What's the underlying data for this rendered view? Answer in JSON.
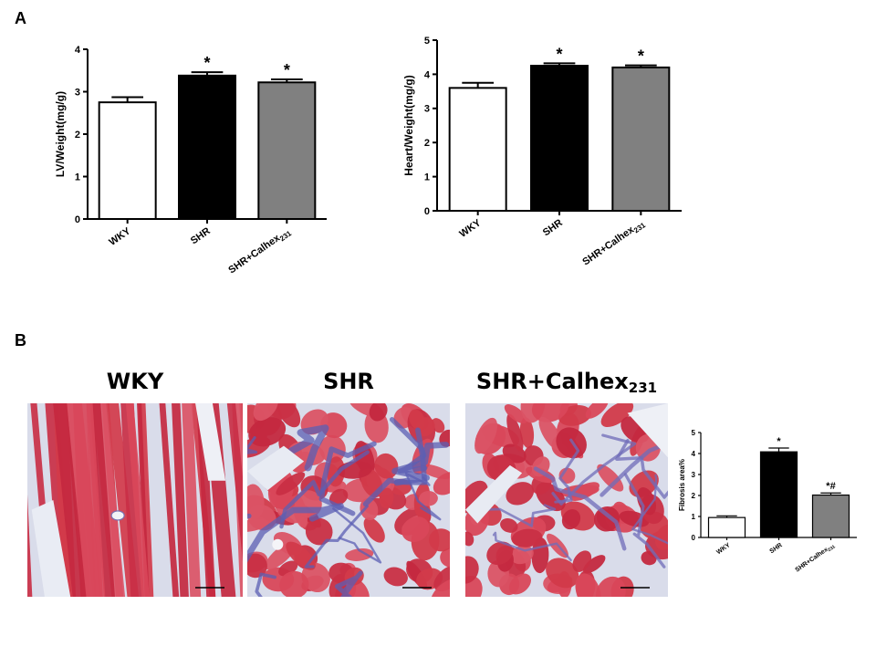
{
  "panels": {
    "a": "A",
    "b": "B"
  },
  "colors": {
    "WKY": "#ffffff",
    "SHR": "#000000",
    "SHR+Calhex231": "#808080"
  },
  "chart_data": [
    {
      "type": "bar",
      "categories": [
        "WKY",
        "SHR",
        "SHR+Calhex231"
      ],
      "values": [
        2.75,
        3.38,
        3.22
      ],
      "errors": [
        0.12,
        0.08,
        0.07
      ],
      "annotations": [
        "",
        "*",
        "*"
      ],
      "xlabel": "",
      "ylabel": "LV/Weight(mg/g)",
      "ylim": [
        0,
        4
      ],
      "yticks": [
        0,
        1,
        2,
        3,
        4
      ],
      "grid": false
    },
    {
      "type": "bar",
      "categories": [
        "WKY",
        "SHR",
        "SHR+Calhex231"
      ],
      "values": [
        3.6,
        4.25,
        4.2
      ],
      "errors": [
        0.15,
        0.07,
        0.06
      ],
      "annotations": [
        "",
        "*",
        "*"
      ],
      "xlabel": "",
      "ylabel": "Heart/Weight(mg/g)",
      "ylim": [
        0,
        5
      ],
      "yticks": [
        0,
        1,
        2,
        3,
        4,
        5
      ],
      "grid": false
    },
    {
      "type": "bar",
      "categories": [
        "WKY",
        "SHR",
        "SHR+Calhex231"
      ],
      "values": [
        0.95,
        4.08,
        2.02
      ],
      "errors": [
        0.08,
        0.18,
        0.1
      ],
      "annotations": [
        "",
        "*",
        "*#"
      ],
      "xlabel": "",
      "ylabel": "Fibrosis area%",
      "ylim": [
        0,
        5
      ],
      "yticks": [
        0,
        1,
        2,
        3,
        4,
        5
      ],
      "grid": false
    }
  ],
  "micrographs": [
    {
      "title": "WKY",
      "title_sub": "",
      "fibrosis": "low"
    },
    {
      "title": "SHR",
      "title_sub": "",
      "fibrosis": "high"
    },
    {
      "title": "SHR+Calhex",
      "title_sub": "231",
      "fibrosis": "medium"
    }
  ]
}
